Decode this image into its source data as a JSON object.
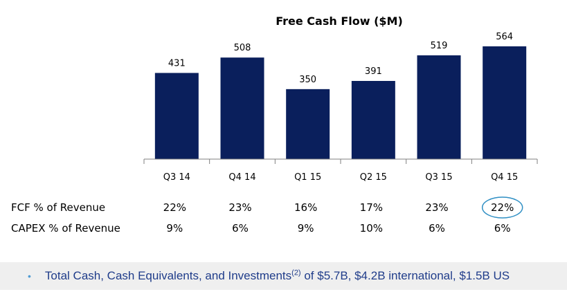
{
  "chart_data": {
    "type": "bar",
    "title": "Free Cash Flow ($M)",
    "categories": [
      "Q3 14",
      "Q4 14",
      "Q1 15",
      "Q2 15",
      "Q3 15",
      "Q4 15"
    ],
    "values": [
      431,
      508,
      350,
      391,
      519,
      564
    ],
    "data_labels": [
      "431",
      "508",
      "350",
      "391",
      "519",
      "564"
    ],
    "bar_color": "#0a1f5c",
    "grid": false,
    "legend": "none"
  },
  "metrics": [
    {
      "label": "FCF % of Revenue",
      "values": [
        "22%",
        "23%",
        "16%",
        "17%",
        "23%",
        "22%"
      ],
      "highlight_index": 5
    },
    {
      "label": "CAPEX % of Revenue",
      "values": [
        "9%",
        "6%",
        "9%",
        "10%",
        "6%",
        "6%"
      ]
    }
  ],
  "highlight_color": "#2f8fc4",
  "footer": {
    "bullet": "•",
    "text_before": "Total Cash, Cash Equivalents, and Investments",
    "superscript": "(2)",
    "text_after": " of $5.7B, $4.2B international, $1.5B US"
  }
}
